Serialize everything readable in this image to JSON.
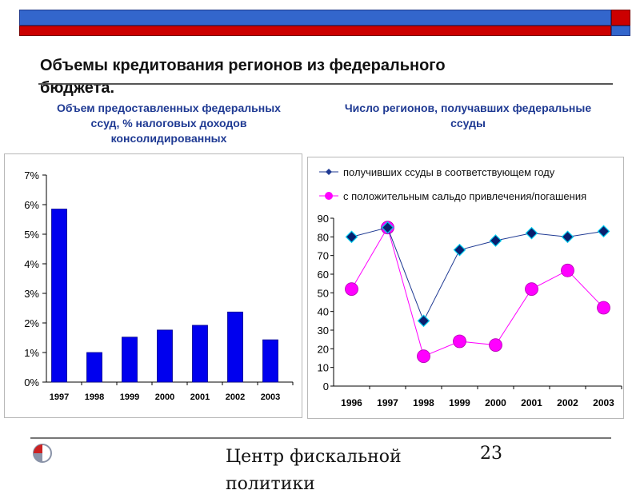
{
  "slide": {
    "title": "Объемы кредитования регионов из федерального бюджета.",
    "left_caption": "Объем предоставленных федеральных ссуд, % налоговых доходов консолидированных",
    "right_caption": "Число регионов, получавших федеральные ссуды",
    "footer": "Центр фискальной политики",
    "page_number": "23",
    "colors": {
      "header_blue": "#3366cc",
      "header_red": "#cc0000",
      "caption_blue": "#1f3a93"
    }
  },
  "chart_data": [
    {
      "type": "bar",
      "categories": [
        "1997",
        "1998",
        "1999",
        "2000",
        "2001",
        "2002",
        "2003"
      ],
      "values": [
        5.85,
        1.0,
        1.52,
        1.76,
        1.92,
        2.37,
        1.43
      ],
      "ylim": [
        0,
        7
      ],
      "yticks": [
        "0%",
        "1%",
        "2%",
        "3%",
        "4%",
        "5%",
        "6%",
        "7%"
      ],
      "color": "#0000ee",
      "grid": false
    },
    {
      "type": "line",
      "categories": [
        "1996",
        "1997",
        "1998",
        "1999",
        "2000",
        "2001",
        "2002",
        "2003"
      ],
      "ylim": [
        0,
        90
      ],
      "yticks": [
        "0",
        "10",
        "20",
        "30",
        "40",
        "50",
        "60",
        "70",
        "80",
        "90"
      ],
      "legend_position": "top",
      "series": [
        {
          "name": "получивших ссуды в соответствующем году",
          "values": [
            80,
            85,
            35,
            73,
            78,
            82,
            80,
            83
          ],
          "color": "#1f3a93",
          "marker": "diamond"
        },
        {
          "name": "с положительным сальдо привлечения/погашения",
          "values": [
            52,
            85,
            16,
            24,
            22,
            52,
            62,
            42
          ],
          "color": "#ff00ff",
          "marker": "circle"
        }
      ]
    }
  ]
}
